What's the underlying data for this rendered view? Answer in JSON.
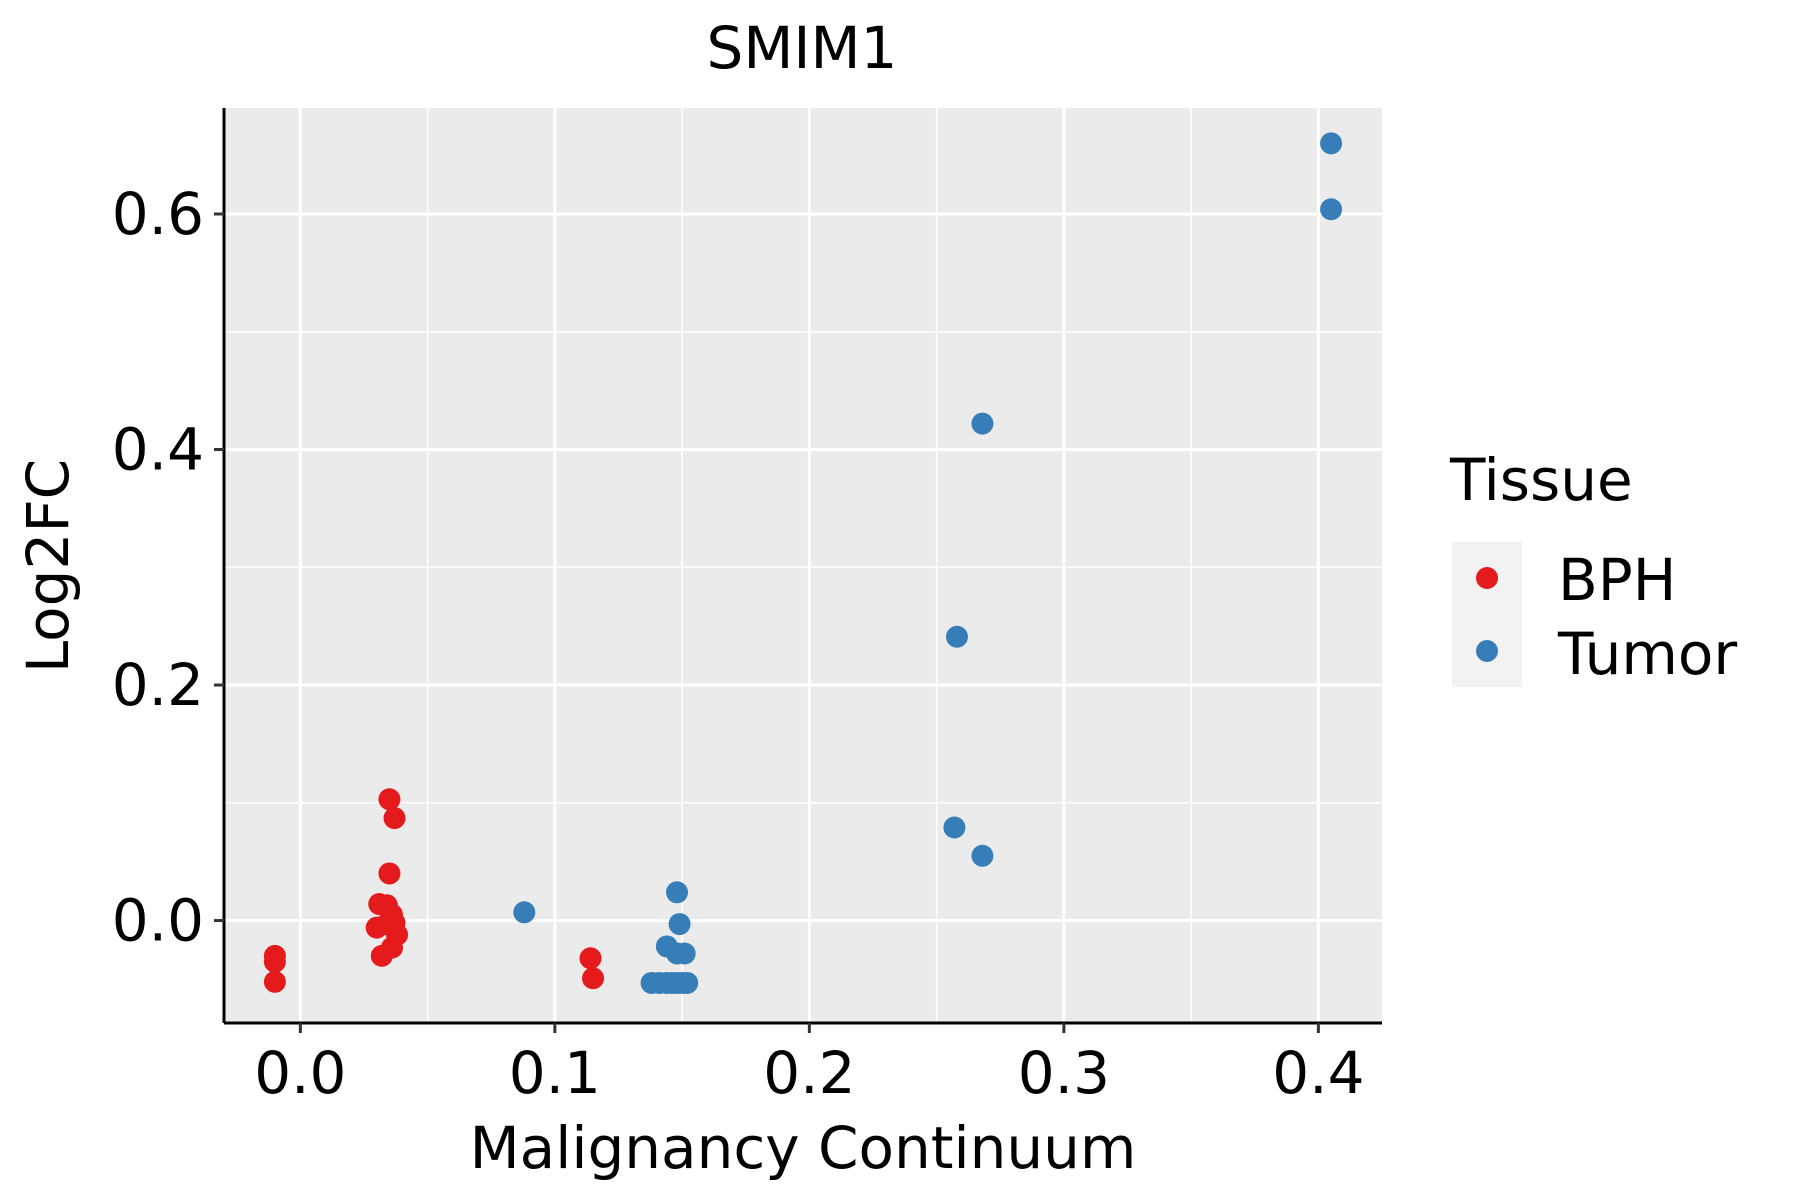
{
  "chart_data": {
    "type": "scatter",
    "title": "SMIM1",
    "xlabel": "Malignancy Continuum",
    "ylabel": "Log2FC",
    "xlim": [
      -0.03,
      0.425
    ],
    "ylim": [
      -0.087,
      0.69
    ],
    "x_ticks": [
      0.0,
      0.1,
      0.2,
      0.3,
      0.4
    ],
    "x_tick_labels": [
      "0.0",
      "0.1",
      "0.2",
      "0.3",
      "0.4"
    ],
    "y_ticks": [
      0.0,
      0.2,
      0.4,
      0.6
    ],
    "y_tick_labels": [
      "0.0",
      "0.2",
      "0.4",
      "0.6"
    ],
    "x_minor_ticks": [
      0.05,
      0.15,
      0.25,
      0.35
    ],
    "y_minor_ticks": [
      0.1,
      0.3,
      0.5
    ],
    "grid": true,
    "panel_background": "#EBEBEB",
    "grid_color": "#FFFFFF",
    "legend": {
      "title": "Tissue",
      "position": "right",
      "entries": [
        {
          "label": "BPH",
          "color": "#E41A1C"
        },
        {
          "label": "Tumor",
          "color": "#377EB8"
        }
      ]
    },
    "series": [
      {
        "name": "BPH",
        "color": "#E41A1C",
        "points": [
          [
            -0.01,
            -0.03
          ],
          [
            -0.01,
            -0.035
          ],
          [
            -0.01,
            -0.052
          ],
          [
            0.035,
            0.103
          ],
          [
            0.037,
            0.087
          ],
          [
            0.035,
            0.04
          ],
          [
            0.031,
            0.014
          ],
          [
            0.034,
            0.013
          ],
          [
            0.036,
            0.005
          ],
          [
            0.03,
            -0.006
          ],
          [
            0.034,
            -0.003
          ],
          [
            0.037,
            -0.002
          ],
          [
            0.038,
            -0.012
          ],
          [
            0.036,
            -0.023
          ],
          [
            0.032,
            -0.03
          ],
          [
            0.114,
            -0.032
          ],
          [
            0.115,
            -0.049
          ]
        ]
      },
      {
        "name": "Tumor",
        "color": "#377EB8",
        "points": [
          [
            0.088,
            0.007
          ],
          [
            0.148,
            0.024
          ],
          [
            0.149,
            -0.003
          ],
          [
            0.144,
            -0.022
          ],
          [
            0.148,
            -0.028
          ],
          [
            0.151,
            -0.028
          ],
          [
            0.138,
            -0.053
          ],
          [
            0.141,
            -0.053
          ],
          [
            0.144,
            -0.053
          ],
          [
            0.146,
            -0.053
          ],
          [
            0.148,
            -0.053
          ],
          [
            0.15,
            -0.053
          ],
          [
            0.152,
            -0.053
          ],
          [
            0.258,
            0.241
          ],
          [
            0.257,
            0.079
          ],
          [
            0.268,
            0.055
          ],
          [
            0.268,
            0.422
          ],
          [
            0.405,
            0.66
          ],
          [
            0.405,
            0.604
          ]
        ]
      }
    ]
  }
}
